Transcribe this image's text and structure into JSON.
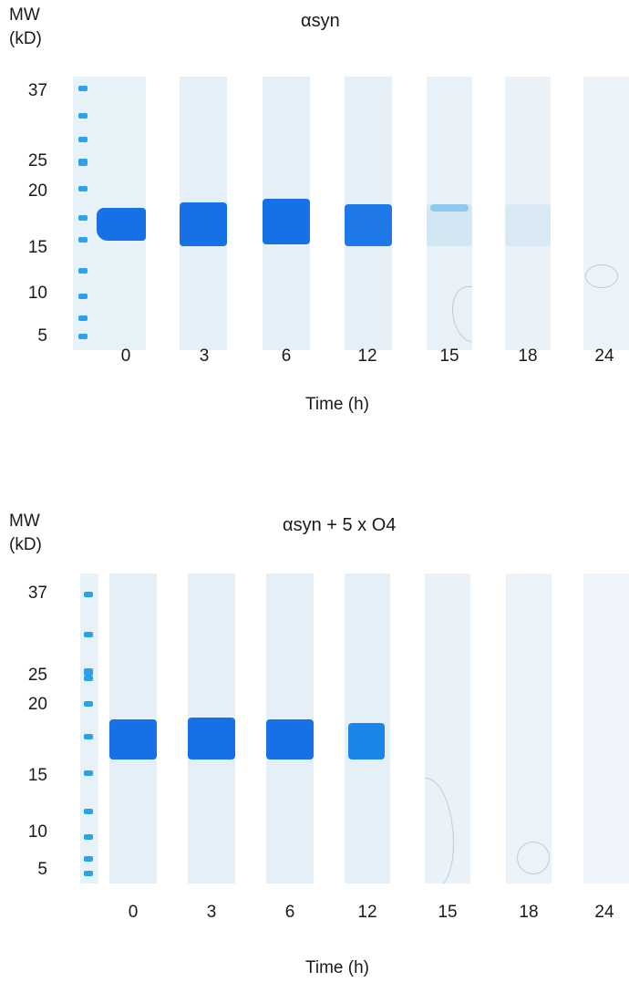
{
  "panels": [
    {
      "title": "αsyn",
      "mw_label_line1": "MW",
      "mw_label_line2": "(kD)",
      "markers": [
        "37",
        "25",
        "20",
        "15",
        "10",
        "5"
      ],
      "lane_labels": [
        "0",
        "3",
        "6",
        "12",
        "15",
        "18",
        "24"
      ],
      "axis_title": "Time (h)"
    },
    {
      "title": "αsyn + 5 x O4",
      "mw_label_line1": "MW",
      "mw_label_line2": "(kD)",
      "markers": [
        "37",
        "25",
        "20",
        "15",
        "10",
        "5"
      ],
      "lane_labels": [
        "0",
        "3",
        "6",
        "12",
        "15",
        "18",
        "24"
      ],
      "axis_title": "Time (h)"
    }
  ],
  "colors": {
    "strong_band": "#1670e6",
    "lane_background": "#e4eff7",
    "ladder_band": "#2aa2ea"
  }
}
